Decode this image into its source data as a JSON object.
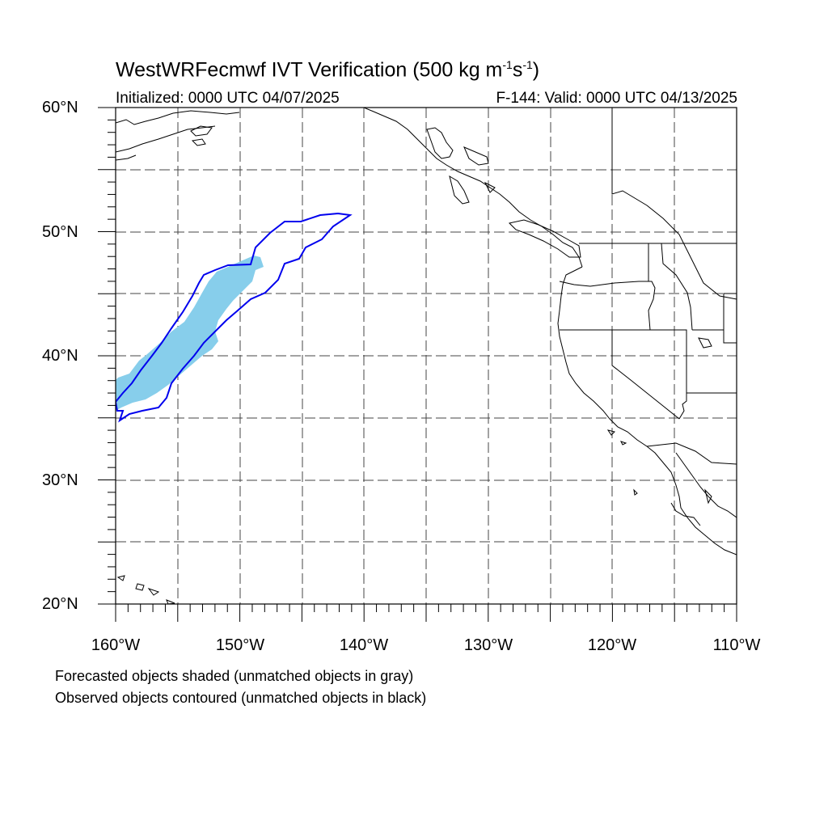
{
  "title": {
    "main": "WestWRFecmwf IVT Verification (500 kg m",
    "exp1": "-1",
    "mid": "s",
    "exp2": "-1",
    "end": ")"
  },
  "initialized": "Initialized: 0000 UTC 04/07/2025",
  "valid": "F-144: Valid: 0000 UTC 04/13/2025",
  "lat_labels": [
    "60°N",
    "50°N",
    "40°N",
    "30°N",
    "20°N"
  ],
  "lon_labels": [
    "160°W",
    "150°W",
    "140°W",
    "130°W",
    "120°W",
    "110°W"
  ],
  "legend": {
    "forecast": "Forecasted objects shaded (unmatched objects in gray)",
    "observed": "Observed objects contoured (unmatched objects in black)"
  },
  "colors": {
    "forecast_fill": "#87ceeb",
    "observed_contour": "#0000ee",
    "grid": "#444444",
    "coast": "#000000"
  },
  "map": {
    "projection": "cylindrical equidistant",
    "lon_range": [
      -160,
      -110
    ],
    "lat_range": [
      20,
      60
    ],
    "grid_spacing_deg": 5
  }
}
